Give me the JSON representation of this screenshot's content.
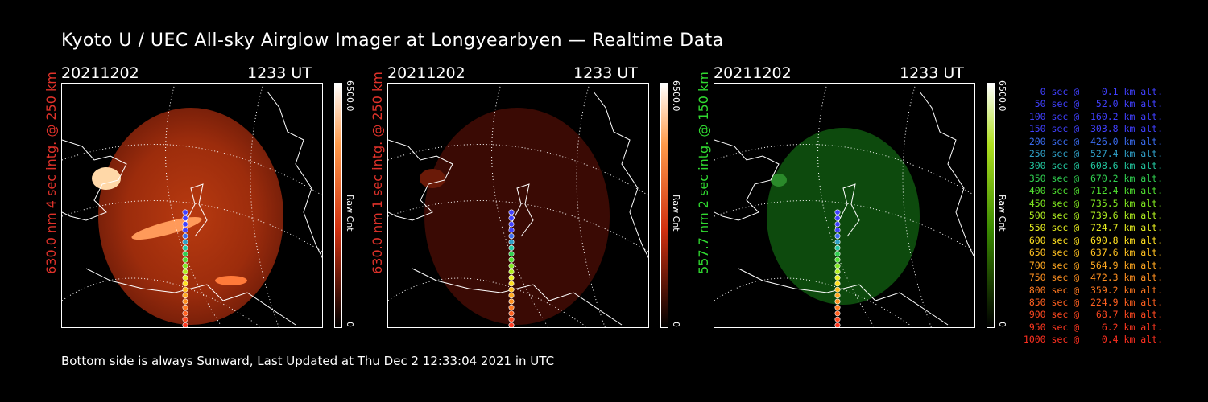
{
  "title": "Kyoto U / UEC All-sky Airglow Imager at Longyearbyen — Realtime Data",
  "panels": [
    {
      "date": "20211202",
      "time": "1233 UT",
      "ylabel": "630.0 nm 4 sec intg. @ 250 km",
      "label_color": "#e0322a",
      "glow": "bright-red",
      "cbar_max": "6500.0",
      "cbar_unit": "Raw Cnt",
      "cbar_min": "0",
      "cbar_top": "#ffffff",
      "cbar_mid": "#ff7a1f",
      "cbar_bot": "#000000"
    },
    {
      "date": "20211202",
      "time": "1233 UT",
      "ylabel": "630.0 nm 1 sec intg. @ 250 km",
      "label_color": "#e0322a",
      "glow": "dim-red",
      "cbar_max": "6500.0",
      "cbar_unit": "Raw Cnt",
      "cbar_min": "0",
      "cbar_top": "#ffffff",
      "cbar_mid": "#ff7a1f",
      "cbar_bot": "#000000"
    },
    {
      "date": "20211202",
      "time": "1233 UT",
      "ylabel": "557.7 nm 2 sec intg. @ 150 km",
      "label_color": "#30d930",
      "glow": "green",
      "cbar_max": "6500.0",
      "cbar_unit": "Raw Cnt",
      "cbar_min": "0",
      "cbar_top": "#ffffff",
      "cbar_mid": "#8ad400",
      "cbar_bot": "#000000"
    }
  ],
  "footer": "Bottom side is always Sunward, Last Updated at Thu Dec  2 12:33:04 2021 in UTC",
  "legend": [
    {
      "text": "   0 sec @    0.1 km alt.",
      "color": "#4040ff"
    },
    {
      "text": "  50 sec @   52.0 km alt.",
      "color": "#4040ff"
    },
    {
      "text": " 100 sec @  160.2 km alt.",
      "color": "#4040ff"
    },
    {
      "text": " 150 sec @  303.8 km alt.",
      "color": "#4040ff"
    },
    {
      "text": " 200 sec @  426.0 km alt.",
      "color": "#3a6cf0"
    },
    {
      "text": " 250 sec @  527.4 km alt.",
      "color": "#2fa0c8"
    },
    {
      "text": " 300 sec @  608.6 km alt.",
      "color": "#22c8a0"
    },
    {
      "text": " 350 sec @  670.2 km alt.",
      "color": "#30d050"
    },
    {
      "text": " 400 sec @  712.4 km alt.",
      "color": "#50e030"
    },
    {
      "text": " 450 sec @  735.5 km alt.",
      "color": "#80e820"
    },
    {
      "text": " 500 sec @  739.6 km alt.",
      "color": "#b0f020"
    },
    {
      "text": " 550 sec @  724.7 km alt.",
      "color": "#e8f020"
    },
    {
      "text": " 600 sec @  690.8 km alt.",
      "color": "#ffe020"
    },
    {
      "text": " 650 sec @  637.6 km alt.",
      "color": "#ffc020"
    },
    {
      "text": " 700 sec @  564.9 km alt.",
      "color": "#ffa820"
    },
    {
      "text": " 750 sec @  472.3 km alt.",
      "color": "#ff9020"
    },
    {
      "text": " 800 sec @  359.2 km alt.",
      "color": "#ff7820"
    },
    {
      "text": " 850 sec @  224.9 km alt.",
      "color": "#ff6020"
    },
    {
      "text": " 900 sec @   68.7 km alt.",
      "color": "#ff4820"
    },
    {
      "text": " 950 sec @    6.2 km alt.",
      "color": "#ff3820"
    },
    {
      "text": "1000 sec @    0.4 km alt.",
      "color": "#ff3020"
    }
  ]
}
